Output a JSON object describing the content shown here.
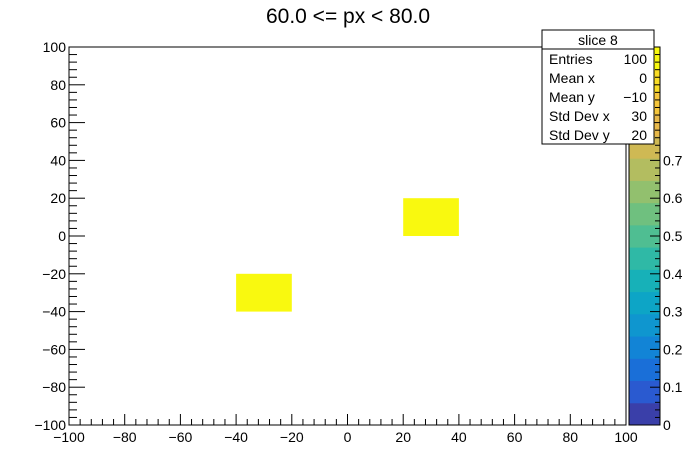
{
  "chart_data": {
    "type": "heatmap",
    "title": "60.0 <= px < 80.0",
    "xlim": [
      -100,
      100
    ],
    "ylim": [
      -100,
      100
    ],
    "x_ticks": [
      -100,
      -80,
      -60,
      -40,
      -20,
      0,
      20,
      40,
      60,
      80,
      100
    ],
    "y_ticks": [
      -100,
      -80,
      -60,
      -40,
      -20,
      0,
      20,
      40,
      60,
      80,
      100
    ],
    "x_tick_labels": [
      "−100",
      "−80",
      "−60",
      "−40",
      "−20",
      "0",
      "20",
      "40",
      "60",
      "80",
      "100"
    ],
    "y_tick_labels": [
      "−100",
      "−80",
      "−60",
      "−40",
      "−20",
      "0",
      "20",
      "40",
      "60",
      "80",
      "100"
    ],
    "cells": [
      {
        "x0": -40,
        "x1": -20,
        "y0": -40,
        "y1": -20,
        "value": 1.0
      },
      {
        "x0": 20,
        "x1": 40,
        "y0": 0,
        "y1": 20,
        "value": 1.0
      }
    ],
    "cell_color": "#f9f90f",
    "colorbar": {
      "min": 0,
      "max": 1,
      "ticks": [
        0,
        0.1,
        0.2,
        0.3,
        0.4,
        0.5,
        0.6,
        0.7
      ],
      "tick_labels": [
        "0",
        "0.1",
        "0.2",
        "0.3",
        "0.4",
        "0.5",
        "0.6",
        "0.7"
      ],
      "colors": [
        "#3a3fa9",
        "#2a5ad0",
        "#1a6fd8",
        "#1284d6",
        "#0f96cf",
        "#0da5c6",
        "#17b1b8",
        "#2fb9a6",
        "#4fbe92",
        "#6fc07f",
        "#92c06e",
        "#b3bd60",
        "#cfb954",
        "#e8b94a",
        "#f5c63c",
        "#f9dc25",
        "#f9f90f"
      ]
    },
    "stats": {
      "name": "slice 8",
      "rows": [
        {
          "label": "Entries",
          "value": "100"
        },
        {
          "label": "Mean x",
          "value": "0"
        },
        {
          "label": "Mean y",
          "value": "−10"
        },
        {
          "label": "Std Dev x",
          "value": "30"
        },
        {
          "label": "Std Dev y",
          "value": "20"
        }
      ]
    },
    "grid": false
  }
}
